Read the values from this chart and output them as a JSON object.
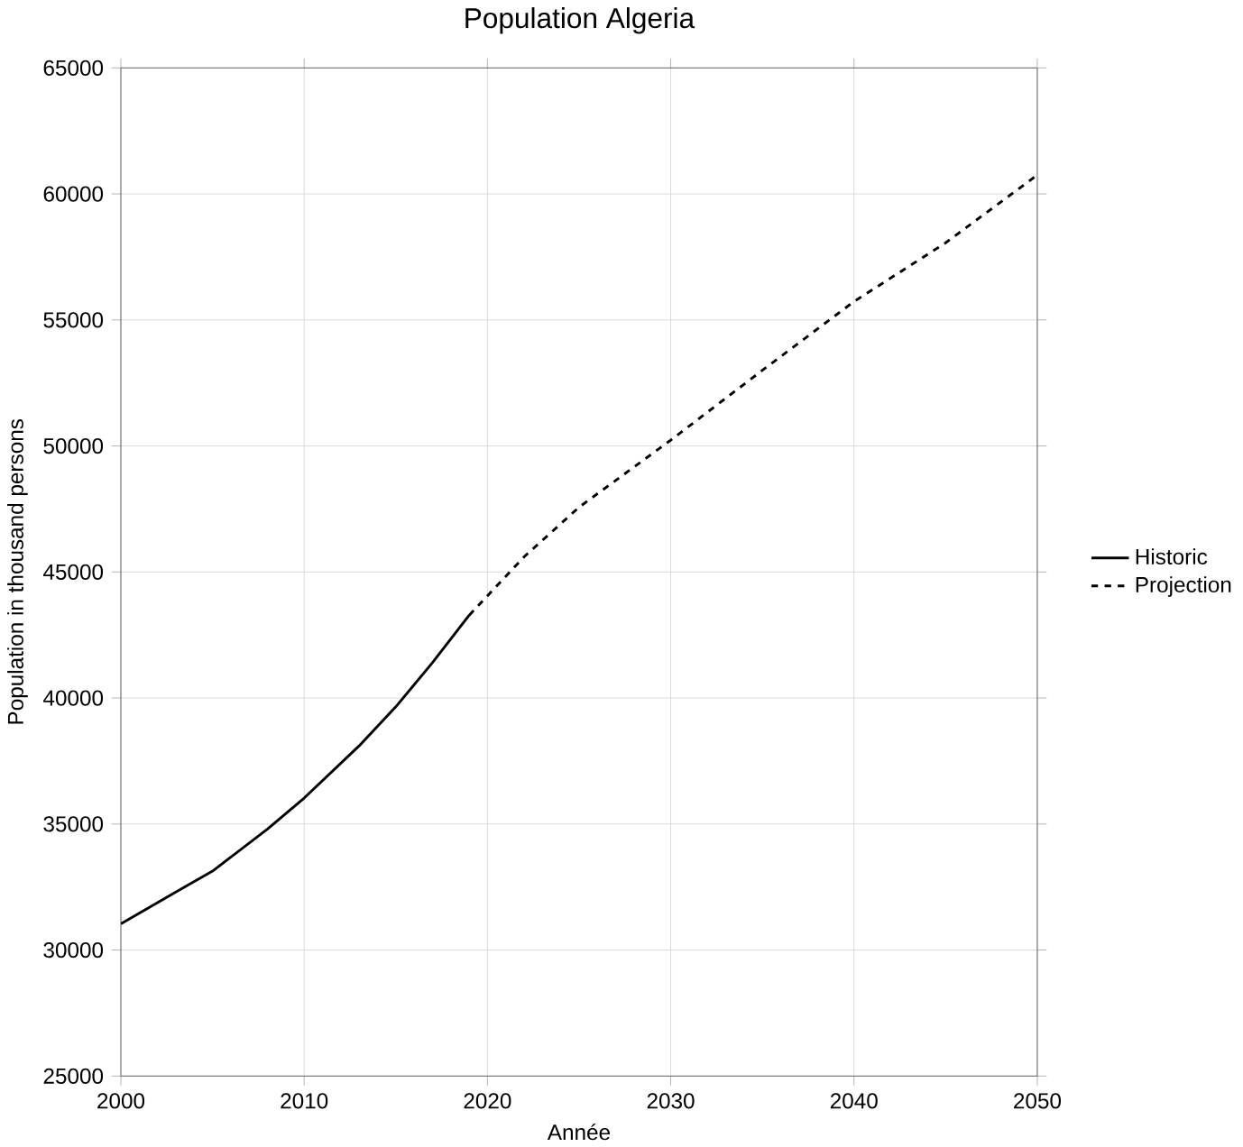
{
  "chart_data": {
    "type": "line",
    "title": "Population Algeria",
    "xlabel": "Année",
    "ylabel": "Population in thousand persons",
    "xlim": [
      2000,
      2050
    ],
    "xticks": [
      2000,
      2010,
      2020,
      2030,
      2040,
      2050
    ],
    "ylim": [
      25000,
      65000
    ],
    "yticks": [
      25000,
      30000,
      35000,
      40000,
      45000,
      50000,
      55000,
      60000,
      65000
    ],
    "grid": true,
    "legend": "right",
    "series": [
      {
        "name": "Historic",
        "color": "#000000",
        "line_style": "solid",
        "x": [
          2000,
          2003,
          2005,
          2008,
          2010,
          2013,
          2015,
          2017,
          2019
        ],
        "values": [
          31040,
          32300,
          33130,
          34800,
          36030,
          38100,
          39650,
          41400,
          43280
        ]
      },
      {
        "name": "Projection",
        "color": "#000000",
        "line_style": "dashed",
        "x": [
          2019,
          2022,
          2025,
          2030,
          2035,
          2040,
          2045,
          2050
        ],
        "values": [
          43280,
          45600,
          47570,
          50230,
          53000,
          55730,
          58060,
          60750
        ]
      }
    ]
  }
}
